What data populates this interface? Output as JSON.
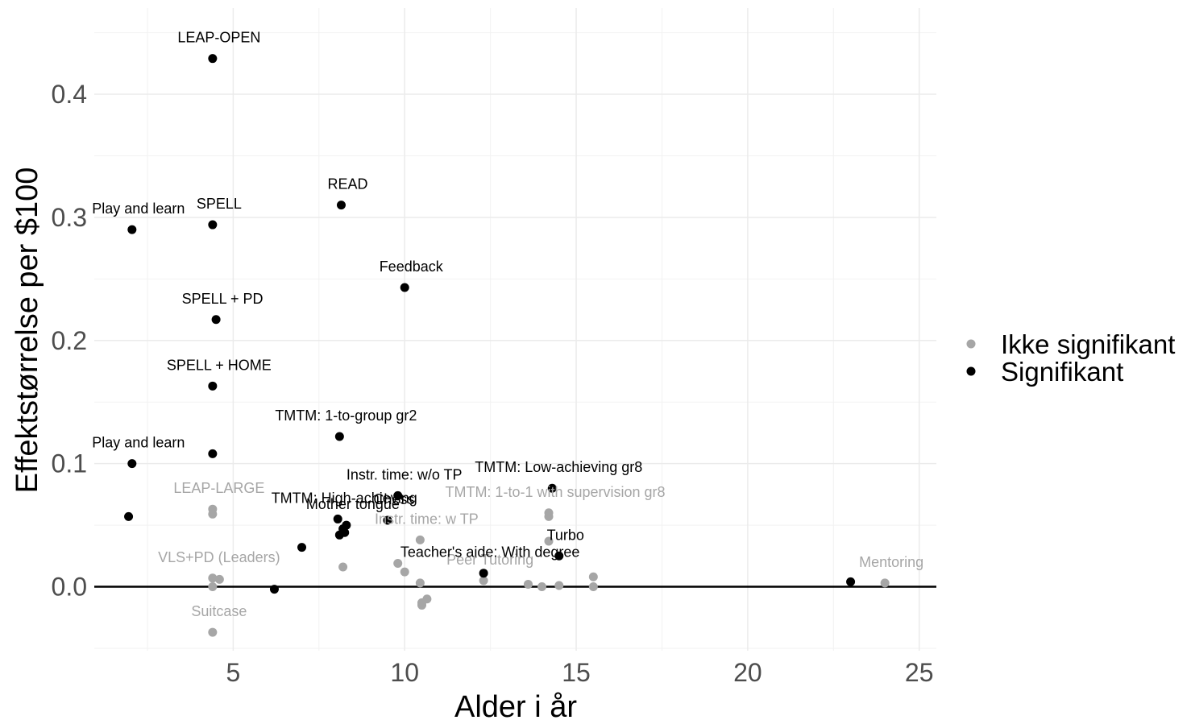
{
  "chart_data": {
    "type": "scatter",
    "title": "",
    "xlabel": "Alder i år",
    "ylabel": "Effektstørrelse per $100",
    "xlim": [
      0.95,
      25.5
    ],
    "ylim": [
      -0.052,
      0.47
    ],
    "x_ticks": [
      5,
      10,
      15,
      20,
      25
    ],
    "x_tick_labels": [
      "5",
      "10",
      "15",
      "20",
      "25"
    ],
    "y_ticks": [
      0.0,
      0.1,
      0.2,
      0.3,
      0.4
    ],
    "y_tick_labels": [
      "0.0",
      "0.1",
      "0.2",
      "0.3",
      "0.4"
    ],
    "grid": true,
    "reference_line_y": 0,
    "legend_position": "right",
    "colors": {
      "Ikke signifikant": "#a6a6a6",
      "Signifikant": "#000000"
    },
    "series": [
      {
        "name": "Ikke signifikant",
        "points": [
          {
            "x": 4.4,
            "y": 0.063,
            "label": "LEAP-LARGE"
          },
          {
            "x": 4.4,
            "y": 0.059,
            "label": ""
          },
          {
            "x": 14.2,
            "y": 0.06,
            "label": "TMTM: 1-to-1 with supervision gr8"
          },
          {
            "x": 14.2,
            "y": 0.057,
            "label": ""
          },
          {
            "x": 10.45,
            "y": 0.038,
            "label": "Instr. time: w TP"
          },
          {
            "x": 14.2,
            "y": 0.037,
            "label": ""
          },
          {
            "x": 9.8,
            "y": 0.019,
            "label": ""
          },
          {
            "x": 8.2,
            "y": 0.016,
            "label": ""
          },
          {
            "x": 10.0,
            "y": 0.012,
            "label": ""
          },
          {
            "x": 4.4,
            "y": 0.007,
            "label": "VLS+PD (Leaders)"
          },
          {
            "x": 4.6,
            "y": 0.006,
            "label": ""
          },
          {
            "x": 4.4,
            "y": 0.0,
            "label": ""
          },
          {
            "x": 12.3,
            "y": 0.005,
            "label": "Peer Tutoring"
          },
          {
            "x": 15.5,
            "y": 0.008,
            "label": ""
          },
          {
            "x": 15.5,
            "y": 0.0,
            "label": ""
          },
          {
            "x": 10.45,
            "y": 0.003,
            "label": ""
          },
          {
            "x": 13.6,
            "y": 0.002,
            "label": ""
          },
          {
            "x": 14.0,
            "y": 0.0,
            "label": ""
          },
          {
            "x": 14.5,
            "y": 0.001,
            "label": ""
          },
          {
            "x": 10.65,
            "y": -0.01,
            "label": ""
          },
          {
            "x": 10.5,
            "y": -0.013,
            "label": ""
          },
          {
            "x": 10.5,
            "y": -0.015,
            "label": ""
          },
          {
            "x": 4.4,
            "y": -0.037,
            "label": "Suitcase"
          },
          {
            "x": 24.0,
            "y": 0.003,
            "label": "Mentoring"
          }
        ]
      },
      {
        "name": "Signifikant",
        "points": [
          {
            "x": 4.4,
            "y": 0.429,
            "label": "LEAP-OPEN"
          },
          {
            "x": 8.15,
            "y": 0.31,
            "label": "READ"
          },
          {
            "x": 2.05,
            "y": 0.29,
            "label": "Play and learn"
          },
          {
            "x": 4.4,
            "y": 0.294,
            "label": "SPELL"
          },
          {
            "x": 10.0,
            "y": 0.243,
            "label": "Feedback"
          },
          {
            "x": 4.5,
            "y": 0.217,
            "label": "SPELL + PD"
          },
          {
            "x": 4.4,
            "y": 0.163,
            "label": "SPELL + HOME"
          },
          {
            "x": 8.1,
            "y": 0.122,
            "label": "TMTM: 1-to-group gr2"
          },
          {
            "x": 4.4,
            "y": 0.108,
            "label": ""
          },
          {
            "x": 2.05,
            "y": 0.1,
            "label": "Play and learn"
          },
          {
            "x": 14.3,
            "y": 0.08,
            "label": "TMTM: Low-achieving gr8"
          },
          {
            "x": 9.8,
            "y": 0.074,
            "label": "Instr. time: w/o TP"
          },
          {
            "x": 1.95,
            "y": 0.057,
            "label": ""
          },
          {
            "x": 9.5,
            "y": 0.054,
            "label": "Chess"
          },
          {
            "x": 8.05,
            "y": 0.055,
            "label": "TMTM: High-achieving"
          },
          {
            "x": 8.3,
            "y": 0.05,
            "label": "Mother tongue"
          },
          {
            "x": 8.2,
            "y": 0.047,
            "label": ""
          },
          {
            "x": 8.25,
            "y": 0.044,
            "label": ""
          },
          {
            "x": 8.1,
            "y": 0.042,
            "label": ""
          },
          {
            "x": 7.0,
            "y": 0.032,
            "label": ""
          },
          {
            "x": 14.5,
            "y": 0.025,
            "label": "Turbo"
          },
          {
            "x": 12.3,
            "y": 0.011,
            "label": "Teacher's aide: With degree"
          },
          {
            "x": 6.2,
            "y": -0.002,
            "label": ""
          },
          {
            "x": 23.0,
            "y": 0.004,
            "label": ""
          }
        ]
      }
    ]
  }
}
